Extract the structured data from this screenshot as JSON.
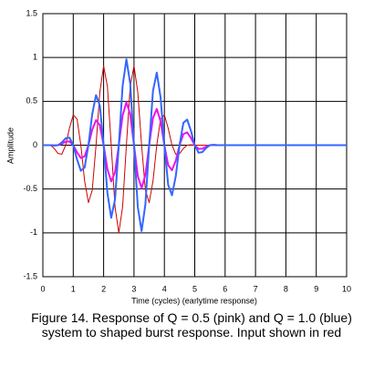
{
  "chart_data": {
    "type": "line",
    "x_label": "Time (cycles)  (earlytime response)",
    "y_label": "Amplitude",
    "caption": "Figure 14. Response of Q = 0.5 (pink) and Q = 1.0 (blue) system to shaped burst response. Input shown in red",
    "x": [
      0,
      0.125,
      0.25,
      0.375,
      0.5,
      0.625,
      0.75,
      0.875,
      1,
      1.125,
      1.25,
      1.375,
      1.5,
      1.625,
      1.75,
      1.875,
      2,
      2.125,
      2.25,
      2.375,
      2.5,
      2.625,
      2.75,
      2.875,
      3,
      3.125,
      3.25,
      3.375,
      3.5,
      3.625,
      3.75,
      3.875,
      4,
      4.125,
      4.25,
      4.375,
      4.5,
      4.625,
      4.75,
      4.875,
      5,
      5.125,
      5.25,
      5.375,
      5.5,
      5.625,
      5.75,
      10
    ],
    "series": [
      {
        "color": "#cc0000",
        "values": [
          0,
          0.004,
          0,
          -0.038,
          -0.095,
          -0.103,
          0,
          0.193,
          0.345,
          0.298,
          0,
          -0.409,
          -0.655,
          -0.514,
          0,
          0.604,
          0.905,
          0.669,
          0,
          -0.703,
          -1,
          -0.703,
          0,
          0.669,
          0.905,
          0.604,
          0,
          -0.514,
          -0.655,
          -0.409,
          0,
          0.298,
          0.345,
          0.193,
          0,
          -0.103,
          -0.095,
          -0.038,
          0,
          0.004,
          0,
          0,
          0,
          0,
          0,
          0,
          0,
          0
        ]
      },
      {
        "color": "#ee10ee",
        "values": [
          0,
          0,
          0,
          -0.002,
          0,
          0.016,
          0.04,
          0.043,
          0,
          -0.082,
          -0.146,
          -0.127,
          0,
          0.177,
          0.286,
          0.227,
          0,
          -0.273,
          -0.414,
          -0.31,
          0,
          0.338,
          0.49,
          0.352,
          0,
          -0.352,
          -0.49,
          -0.338,
          0,
          0.31,
          0.414,
          0.273,
          0,
          -0.227,
          -0.286,
          -0.177,
          0,
          0.127,
          0.146,
          0.082,
          0,
          -0.043,
          -0.04,
          -0.016,
          0,
          0.002,
          0,
          0
        ]
      },
      {
        "color": "#3366ff",
        "values": [
          0,
          0,
          0,
          -0.004,
          0,
          0.032,
          0.079,
          0.086,
          0,
          -0.163,
          -0.292,
          -0.254,
          0,
          0.354,
          0.571,
          0.453,
          0,
          -0.545,
          -0.828,
          -0.62,
          0,
          0.675,
          0.98,
          0.703,
          0,
          -0.703,
          -0.98,
          -0.675,
          0,
          0.62,
          0.828,
          0.545,
          0,
          -0.453,
          -0.571,
          -0.354,
          0,
          0.254,
          0.292,
          0.163,
          0,
          -0.086,
          -0.079,
          -0.032,
          0,
          0.004,
          0,
          0
        ]
      }
    ],
    "xlim": [
      0,
      10
    ],
    "xticks": [
      0,
      1,
      2,
      3,
      4,
      5,
      6,
      7,
      8,
      9,
      10
    ],
    "ylim": [
      -1.5,
      1.5
    ],
    "yticks": [
      -1.5,
      -1,
      -0.5,
      0,
      0.5,
      1,
      1.5
    ],
    "grid": true
  }
}
